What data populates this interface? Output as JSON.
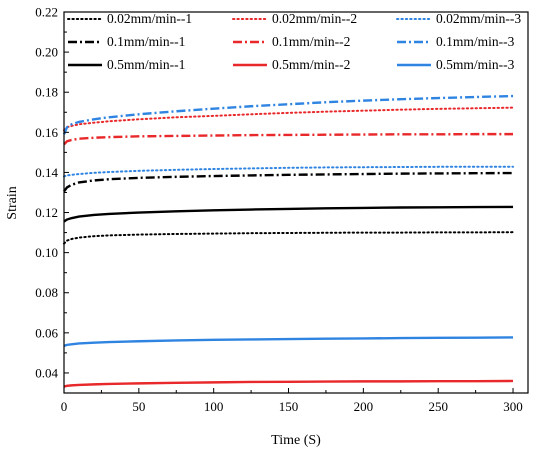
{
  "chart_data": {
    "type": "line",
    "title": "",
    "xlabel": "Time (S)",
    "ylabel": "Strain",
    "xlim": [
      0,
      310
    ],
    "ylim": [
      0.03,
      0.22
    ],
    "x_ticks": [
      0,
      50,
      100,
      150,
      200,
      250,
      300
    ],
    "x_tick_labels": [
      "0",
      "50",
      "100",
      "150",
      "200",
      "250",
      "300"
    ],
    "y_ticks": [
      0.04,
      0.06,
      0.08,
      0.1,
      0.12,
      0.14,
      0.16,
      0.18,
      0.2,
      0.22
    ],
    "y_tick_labels": [
      "0.04",
      "0.06",
      "0.08",
      "0.10",
      "0.12",
      "0.14",
      "0.16",
      "0.18",
      "0.20",
      "0.22"
    ],
    "grid": false,
    "legend_position": "top",
    "legend_columns": 3,
    "x": [
      0,
      2,
      5,
      10,
      20,
      30,
      50,
      75,
      100,
      125,
      150,
      175,
      200,
      225,
      250,
      275,
      300
    ],
    "series": [
      {
        "name": "0.02mm/min--1",
        "color": "#000000",
        "style": "dotted",
        "values": [
          0.1045,
          0.106,
          0.1068,
          0.1075,
          0.1082,
          0.1086,
          0.109,
          0.1093,
          0.1095,
          0.1097,
          0.1098,
          0.1099,
          0.11,
          0.11,
          0.1101,
          0.1101,
          0.1102
        ]
      },
      {
        "name": "0.02mm/min--2",
        "color": "#e8282a",
        "style": "dotted",
        "values": [
          0.161,
          0.1625,
          0.1632,
          0.164,
          0.1648,
          0.1655,
          0.1665,
          0.1675,
          0.1682,
          0.169,
          0.1697,
          0.1703,
          0.1708,
          0.1713,
          0.1717,
          0.172,
          0.1723
        ]
      },
      {
        "name": "0.02mm/min--3",
        "color": "#2f84e2",
        "style": "dotted",
        "values": [
          0.138,
          0.1385,
          0.1388,
          0.1392,
          0.1398,
          0.1402,
          0.1408,
          0.1413,
          0.1417,
          0.142,
          0.1423,
          0.1425,
          0.1426,
          0.1427,
          0.1428,
          0.1428,
          0.1428
        ]
      },
      {
        "name": "0.1mm/min--1",
        "color": "#000000",
        "style": "dashdot",
        "values": [
          0.1305,
          0.1325,
          0.1338,
          0.135,
          0.136,
          0.1366,
          0.1373,
          0.1378,
          0.1382,
          0.1385,
          0.1388,
          0.139,
          0.1392,
          0.1394,
          0.1395,
          0.1396,
          0.1397
        ]
      },
      {
        "name": "0.1mm/min--2",
        "color": "#e8282a",
        "style": "dashdot",
        "values": [
          0.154,
          0.1555,
          0.1562,
          0.1568,
          0.1573,
          0.1576,
          0.158,
          0.1582,
          0.1584,
          0.1586,
          0.1587,
          0.1588,
          0.1589,
          0.159,
          0.159,
          0.1591,
          0.1591
        ]
      },
      {
        "name": "0.1mm/min--3",
        "color": "#2f84e2",
        "style": "dashdot",
        "values": [
          0.159,
          0.1625,
          0.164,
          0.1652,
          0.1665,
          0.1675,
          0.169,
          0.1705,
          0.1718,
          0.173,
          0.174,
          0.175,
          0.1758,
          0.1765,
          0.1771,
          0.1776,
          0.1781
        ]
      },
      {
        "name": "0.5mm/min--1",
        "color": "#000000",
        "style": "solid",
        "values": [
          0.1155,
          0.1165,
          0.1172,
          0.118,
          0.1188,
          0.1193,
          0.12,
          0.1206,
          0.1211,
          0.1215,
          0.1218,
          0.1221,
          0.1223,
          0.1225,
          0.1226,
          0.1227,
          0.1228
        ]
      },
      {
        "name": "0.5mm/min--2",
        "color": "#e8282a",
        "style": "solid",
        "values": [
          0.0332,
          0.0336,
          0.0338,
          0.034,
          0.0343,
          0.0345,
          0.0348,
          0.0351,
          0.0353,
          0.0355,
          0.0356,
          0.0357,
          0.0358,
          0.0358,
          0.0359,
          0.0359,
          0.036
        ]
      },
      {
        "name": "0.5mm/min--3",
        "color": "#2f84e2",
        "style": "solid",
        "values": [
          0.0535,
          0.054,
          0.0543,
          0.0547,
          0.0551,
          0.0554,
          0.0558,
          0.0562,
          0.0565,
          0.0567,
          0.0569,
          0.0571,
          0.0572,
          0.0574,
          0.0575,
          0.0576,
          0.0577
        ]
      }
    ]
  }
}
